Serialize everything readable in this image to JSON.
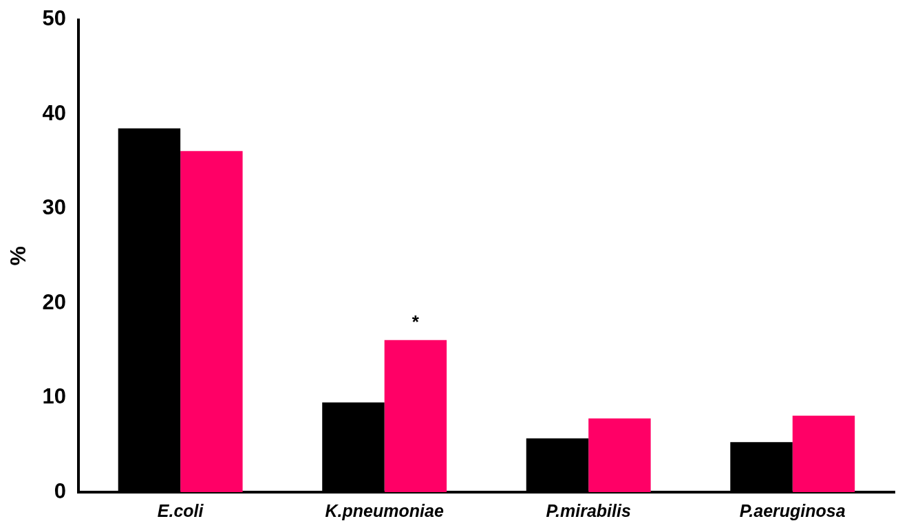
{
  "chart_data": {
    "type": "bar",
    "ylabel": "%",
    "categories": [
      "E.coli",
      "K.pneumoniae",
      "P.mirabilis",
      "P.aeruginosa"
    ],
    "series": [
      {
        "color": "#000000",
        "values": [
          38.5,
          9.5,
          5.7,
          5.3
        ]
      },
      {
        "color": "#ff0066",
        "values": [
          36.1,
          16.1,
          7.8,
          8.1
        ]
      }
    ],
    "ylim": [
      0,
      50
    ],
    "yticks": [
      0,
      10,
      20,
      30,
      40,
      50
    ],
    "grid": false,
    "legend": false,
    "annotations": [
      "*"
    ]
  }
}
